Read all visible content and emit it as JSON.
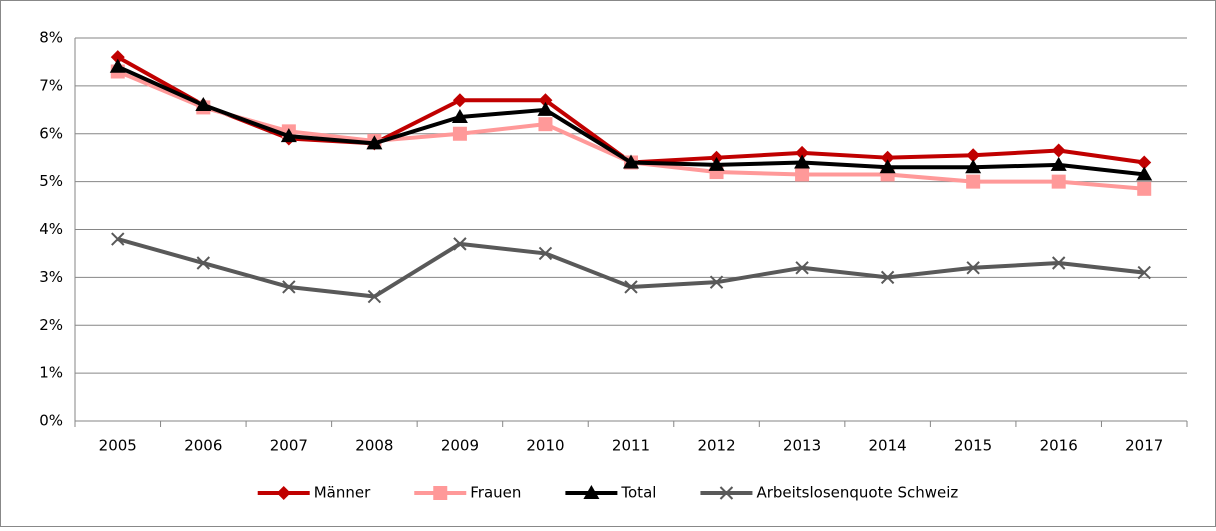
{
  "chart_data": {
    "type": "line",
    "categories": [
      "2005",
      "2006",
      "2007",
      "2008",
      "2009",
      "2010",
      "2011",
      "2012",
      "2013",
      "2014",
      "2015",
      "2016",
      "2017"
    ],
    "series": [
      {
        "name": "Männer",
        "color": "#c00000",
        "marker": "diamond",
        "values": [
          7.6,
          6.6,
          5.9,
          5.8,
          6.7,
          6.7,
          5.4,
          5.5,
          5.6,
          5.5,
          5.55,
          5.65,
          5.4
        ]
      },
      {
        "name": "Frauen",
        "color": "#ff9999",
        "marker": "square",
        "values": [
          7.3,
          6.55,
          6.05,
          5.85,
          6.0,
          6.2,
          5.4,
          5.2,
          5.15,
          5.15,
          5.0,
          5.0,
          4.85
        ]
      },
      {
        "name": "Total",
        "color": "#000000",
        "marker": "triangle",
        "values": [
          7.4,
          6.6,
          5.95,
          5.8,
          6.35,
          6.5,
          5.4,
          5.35,
          5.4,
          5.3,
          5.3,
          5.35,
          5.15
        ]
      },
      {
        "name": "Arbeitslosenquote Schweiz",
        "color": "#595959",
        "marker": "x",
        "values": [
          3.8,
          3.3,
          2.8,
          2.6,
          3.7,
          3.5,
          2.8,
          2.9,
          3.2,
          3.0,
          3.2,
          3.3,
          3.1
        ]
      }
    ],
    "ylim": [
      0,
      8
    ],
    "yticks": [
      {
        "value": 0,
        "label": "0%"
      },
      {
        "value": 1,
        "label": "1%"
      },
      {
        "value": 2,
        "label": "2%"
      },
      {
        "value": 3,
        "label": "3%"
      },
      {
        "value": 4,
        "label": "4%"
      },
      {
        "value": 5,
        "label": "5%"
      },
      {
        "value": 6,
        "label": "6%"
      },
      {
        "value": 7,
        "label": "7%"
      },
      {
        "value": 8,
        "label": "8%"
      }
    ],
    "grid": true,
    "legend": "bottom"
  }
}
